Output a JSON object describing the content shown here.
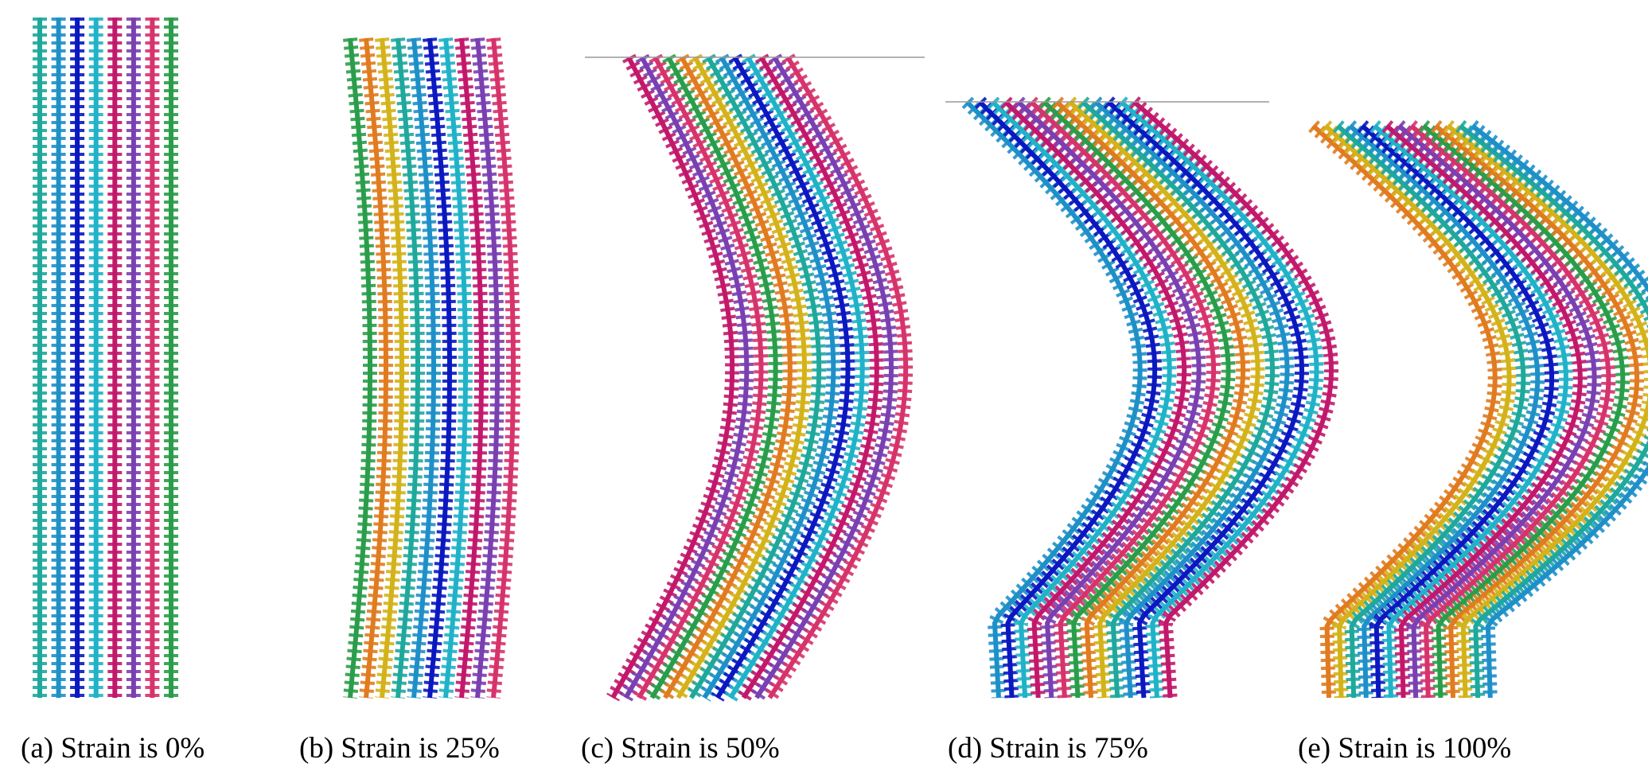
{
  "panels": [
    {
      "caption": "(a) Strain is 0%"
    },
    {
      "caption": "(b) Strain is 25%"
    },
    {
      "caption": "(c) Strain is 50%"
    },
    {
      "caption": "(d) Strain is 75%"
    },
    {
      "caption": "(e) Strain is 100%"
    }
  ]
}
